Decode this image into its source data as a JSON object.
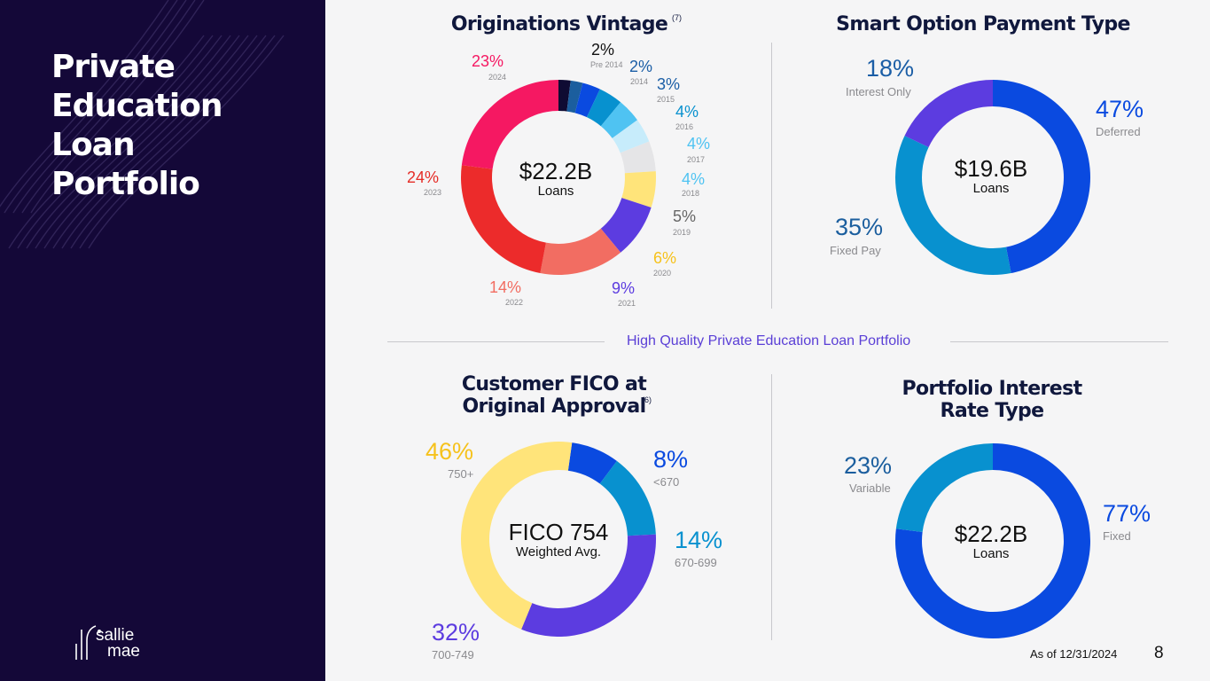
{
  "sidebar": {
    "title_lines": [
      "Private",
      "Education",
      "Loan",
      "Portfolio"
    ],
    "logo_line1": "sallie",
    "logo_line2": "mae"
  },
  "divider_label": "High Quality Private Education Loan Portfolio",
  "footer": {
    "as_of": "As of 12/31/2024",
    "page_number": "8"
  },
  "chart_data": [
    {
      "type": "pie",
      "title": "Originations Vintage",
      "title_note": "(7)",
      "center_value": "$22.2B",
      "center_label": "Loans",
      "slices": [
        {
          "label": "Pre 2014",
          "pct_text": "2%",
          "value": 2,
          "color": "#0f0b33"
        },
        {
          "label": "2014",
          "pct_text": "2%",
          "value": 2,
          "color": "#1b5e9e"
        },
        {
          "label": "2015",
          "pct_text": "3%",
          "value": 3,
          "color": "#0a4ae0"
        },
        {
          "label": "2016",
          "pct_text": "4%",
          "value": 4,
          "color": "#0791cf"
        },
        {
          "label": "2017",
          "pct_text": "4%",
          "value": 4,
          "color": "#4fc3f2"
        },
        {
          "label": "2018",
          "pct_text": "4%",
          "value": 4,
          "color": "#c7ecfb"
        },
        {
          "label": "2019",
          "pct_text": "5%",
          "value": 5,
          "color": "#e5e5e7"
        },
        {
          "label": "2020",
          "pct_text": "6%",
          "value": 6,
          "color": "#ffe47a"
        },
        {
          "label": "2021",
          "pct_text": "9%",
          "value": 9,
          "color": "#5c3ce0"
        },
        {
          "label": "2022",
          "pct_text": "14%",
          "value": 14,
          "color": "#f26d62"
        },
        {
          "label": "2023",
          "pct_text": "24%",
          "value": 24,
          "color": "#ec2b2b"
        },
        {
          "label": "2024",
          "pct_text": "23%",
          "value": 23,
          "color": "#f51862"
        }
      ],
      "label_colors": [
        "#111111",
        "#1b5ea6",
        "#1b5ea6",
        "#0891cf",
        "#4fc3f2",
        "#4fc3f2",
        "#666666",
        "#f6c21c",
        "#5c3ce0",
        "#f26d62",
        "#e52d27",
        "#f51862"
      ]
    },
    {
      "type": "pie",
      "title": "Smart Option Payment Type",
      "center_value": "$19.6B",
      "center_label": "Loans",
      "slices": [
        {
          "label": "Deferred",
          "pct_text": "47%",
          "value": 47,
          "color": "#0a4ae0"
        },
        {
          "label": "Fixed Pay",
          "pct_text": "35%",
          "value": 35,
          "color": "#0891cf"
        },
        {
          "label": "Interest Only",
          "pct_text": "18%",
          "value": 18,
          "color": "#5c3ce0"
        }
      ],
      "label_colors": [
        "#0a4ae0",
        "#1b5e9e",
        "#1b5ea6"
      ]
    },
    {
      "type": "pie",
      "title_lines": [
        "Customer FICO at",
        "Original Approval"
      ],
      "title_note": "(6)",
      "center_value": "FICO 754",
      "center_label": "Weighted Avg.",
      "slices": [
        {
          "label": "<670",
          "pct_text": "8%",
          "value": 8,
          "color": "#0a4ae0"
        },
        {
          "label": "670-699",
          "pct_text": "14%",
          "value": 14,
          "color": "#0891cf"
        },
        {
          "label": "700-749",
          "pct_text": "32%",
          "value": 32,
          "color": "#5c3ce0"
        },
        {
          "label": "750+",
          "pct_text": "46%",
          "value": 46,
          "color": "#ffe47a"
        }
      ],
      "label_colors": [
        "#0a4ae0",
        "#0891cf",
        "#5c3ce0",
        "#f6c21c"
      ]
    },
    {
      "type": "pie",
      "title_lines": [
        "Portfolio Interest",
        "Rate Type"
      ],
      "center_value": "$22.2B",
      "center_label": "Loans",
      "slices": [
        {
          "label": "Fixed",
          "pct_text": "77%",
          "value": 77,
          "color": "#0a4ae0"
        },
        {
          "label": "Variable",
          "pct_text": "23%",
          "value": 23,
          "color": "#0891cf"
        }
      ],
      "label_colors": [
        "#0a4ae0",
        "#1b5e9e"
      ]
    }
  ]
}
